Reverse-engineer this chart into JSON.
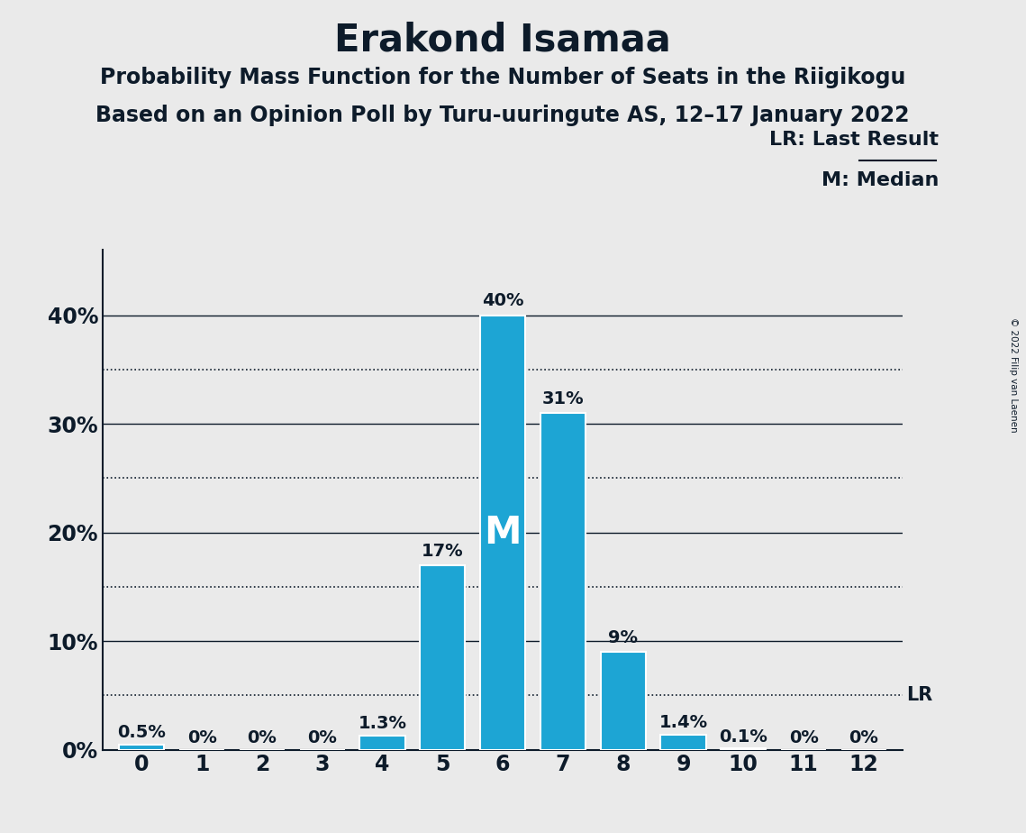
{
  "title": "Erakond Isamaa",
  "subtitle1": "Probability Mass Function for the Number of Seats in the Riigikogu",
  "subtitle2": "Based on an Opinion Poll by Turu-uuringute AS, 12–17 January 2022",
  "copyright": "© 2022 Filip van Laenen",
  "categories": [
    0,
    1,
    2,
    3,
    4,
    5,
    6,
    7,
    8,
    9,
    10,
    11,
    12
  ],
  "values": [
    0.5,
    0.0,
    0.0,
    0.0,
    1.3,
    17.0,
    40.0,
    31.0,
    9.0,
    1.4,
    0.1,
    0.0,
    0.0
  ],
  "labels": [
    "0.5%",
    "0%",
    "0%",
    "0%",
    "1.3%",
    "17%",
    "40%",
    "31%",
    "9%",
    "1.4%",
    "0.1%",
    "0%",
    "0%"
  ],
  "bar_color": "#1da5d4",
  "median_bar": 6,
  "median_label": "M",
  "lr_value": 5.0,
  "lr_label": "LR",
  "legend_lr": "LR: Last Result",
  "legend_m": "M: Median",
  "background_color": "#eaeaea",
  "yticks_solid": [
    10,
    20,
    30,
    40
  ],
  "yticks_dotted": [
    5,
    15,
    25,
    35
  ],
  "ytick_labels": [
    0,
    10,
    20,
    30,
    40
  ],
  "ylim": [
    0,
    46
  ],
  "title_fontsize": 30,
  "subtitle_fontsize": 17,
  "label_fontsize": 14,
  "tick_fontsize": 17,
  "bar_width": 0.75,
  "text_color": "#0d1b2a"
}
